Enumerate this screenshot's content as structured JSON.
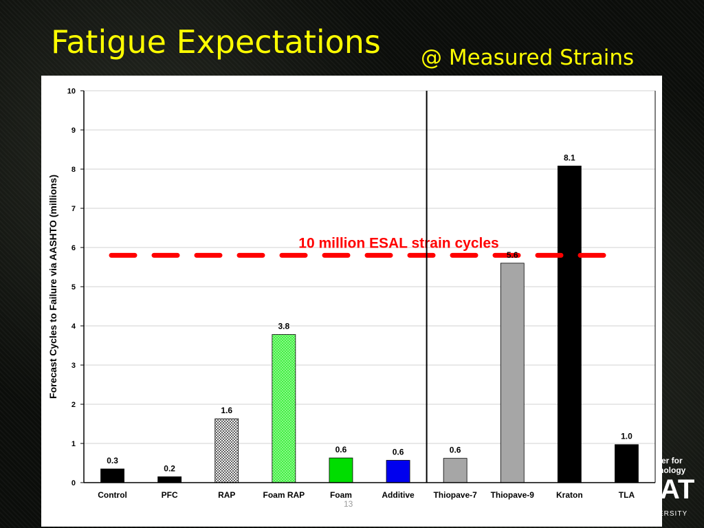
{
  "slide": {
    "title": "Fatigue Expectations",
    "subtitle": "@ Measured Strains",
    "page_number": "13"
  },
  "logo": {
    "line1": "ter for",
    "line2": "nology",
    "mark": "AT",
    "line3": "ERSITY"
  },
  "colors": {
    "title": "#ffff00",
    "reference_line": "#ff0000",
    "annotation": "#ff0000"
  },
  "chart_data": {
    "type": "bar",
    "title": "",
    "xlabel": "",
    "ylabel": "Forecast Cycles to Failure via AASHTO (millions)",
    "ylim": [
      0,
      10
    ],
    "yticks": [
      "0",
      "1",
      "2",
      "3",
      "4",
      "5",
      "6",
      "7",
      "8",
      "9",
      "10"
    ],
    "grid": true,
    "categories": [
      "Control",
      "PFC",
      "RAP",
      "Foam RAP",
      "Foam",
      "Additive",
      "Thiopave-7",
      "Thiopave-9",
      "Kraton",
      "TLA"
    ],
    "values": [
      0.35,
      0.15,
      1.63,
      3.78,
      0.63,
      0.57,
      0.62,
      5.6,
      8.08,
      0.97
    ],
    "data_labels": [
      "0.3",
      "0.2",
      "1.6",
      "3.8",
      "0.6",
      "0.6",
      "0.6",
      "5.6",
      "8.1",
      "1.0"
    ],
    "bar_colors": [
      "#000000",
      "#000000",
      "#888888",
      "#33ee33",
      "#00dd00",
      "#0000ee",
      "#a6a6a6",
      "#a6a6a6",
      "#000000",
      "#000000"
    ],
    "bar_patterns": [
      "solid",
      "solid",
      "dots-dark",
      "dots-green",
      "solid",
      "solid",
      "solid",
      "solid",
      "solid",
      "solid"
    ],
    "group_divider_after": "Additive",
    "reference_line": {
      "value": 5.8,
      "style": "dashed",
      "label": "10 million ESAL strain cycles"
    }
  }
}
